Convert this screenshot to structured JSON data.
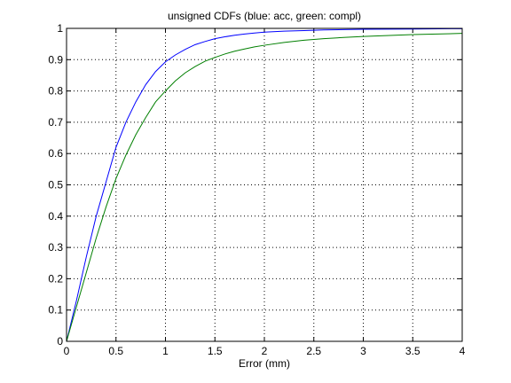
{
  "chart_data": {
    "type": "line",
    "title": "unsigned CDFs (blue: acc, green: compl)",
    "xlabel": "Error (mm)",
    "ylabel": "",
    "xlim": [
      0,
      4
    ],
    "ylim": [
      0,
      1
    ],
    "xticks": [
      0,
      0.5,
      1,
      1.5,
      2,
      2.5,
      3,
      3.5,
      4
    ],
    "xtick_labels": [
      "0",
      "0.5",
      "1",
      "1.5",
      "2",
      "2.5",
      "3",
      "3.5",
      "4"
    ],
    "yticks": [
      0,
      0.1,
      0.2,
      0.3,
      0.4,
      0.5,
      0.6,
      0.7,
      0.8,
      0.9,
      1
    ],
    "ytick_labels": [
      "0",
      "0.1",
      "0.2",
      "0.3",
      "0.4",
      "0.5",
      "0.6",
      "0.7",
      "0.8",
      "0.9",
      "1"
    ],
    "grid": true,
    "series": [
      {
        "color": "#0000ff",
        "x": [
          0,
          0.1,
          0.2,
          0.3,
          0.4,
          0.5,
          0.6,
          0.7,
          0.8,
          0.9,
          1.0,
          1.1,
          1.2,
          1.3,
          1.4,
          1.5,
          1.6,
          1.7,
          1.8,
          1.9,
          2.0,
          2.2,
          2.4,
          2.6,
          2.8,
          3.0,
          3.5,
          4.0
        ],
        "y": [
          0,
          0.13,
          0.27,
          0.4,
          0.51,
          0.62,
          0.7,
          0.765,
          0.82,
          0.862,
          0.893,
          0.915,
          0.933,
          0.948,
          0.958,
          0.967,
          0.973,
          0.978,
          0.982,
          0.985,
          0.988,
          0.991,
          0.993,
          0.995,
          0.996,
          0.997,
          0.998,
          0.999
        ]
      },
      {
        "color": "#007f00",
        "x": [
          0,
          0.1,
          0.2,
          0.3,
          0.4,
          0.5,
          0.6,
          0.7,
          0.8,
          0.9,
          1.0,
          1.1,
          1.2,
          1.3,
          1.4,
          1.5,
          1.6,
          1.7,
          1.8,
          1.9,
          2.0,
          2.2,
          2.4,
          2.6,
          2.8,
          3.0,
          3.5,
          4.0
        ],
        "y": [
          0,
          0.11,
          0.22,
          0.33,
          0.43,
          0.52,
          0.595,
          0.66,
          0.715,
          0.765,
          0.8,
          0.832,
          0.858,
          0.878,
          0.895,
          0.907,
          0.918,
          0.927,
          0.934,
          0.941,
          0.946,
          0.955,
          0.962,
          0.967,
          0.971,
          0.974,
          0.98,
          0.984
        ]
      }
    ]
  }
}
